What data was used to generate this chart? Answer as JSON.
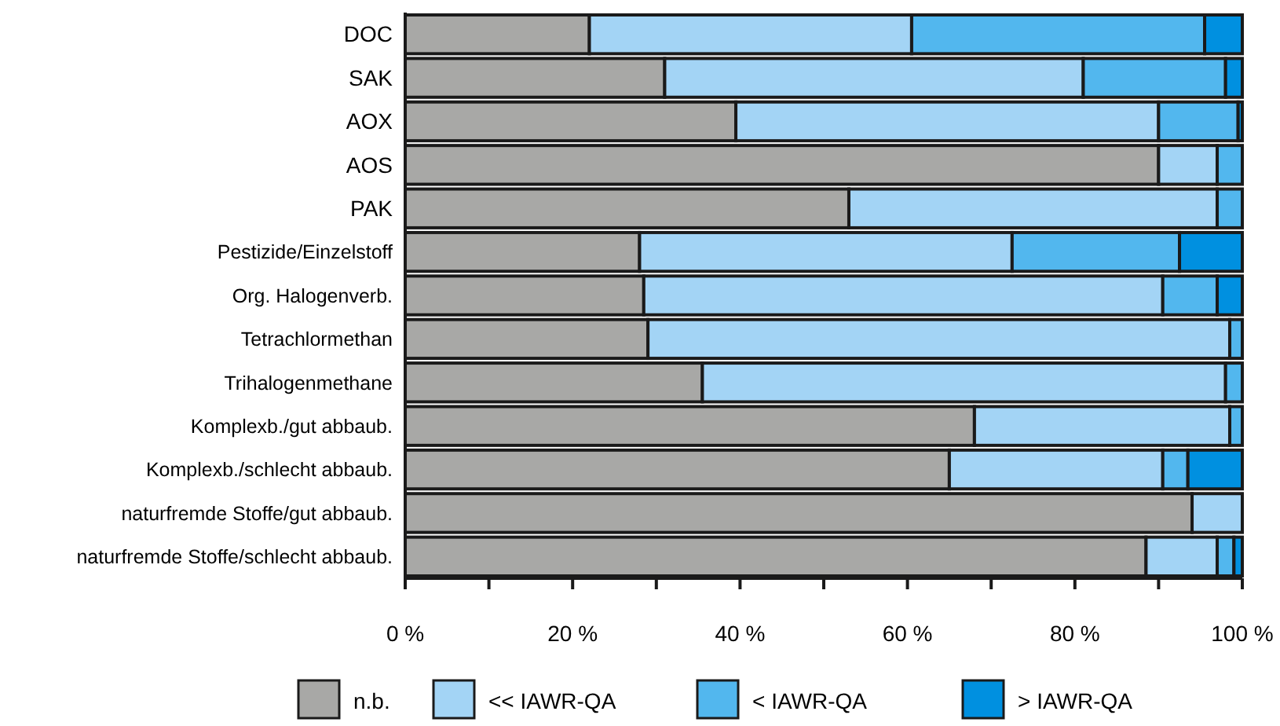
{
  "chart_data": {
    "type": "bar",
    "orientation": "horizontal",
    "stacked": true,
    "categories": [
      "DOC",
      "SAK",
      "AOX",
      "AOS",
      "PAK",
      "Pestizide/Einzelstoff",
      "Org. Halogenverb.",
      "Tetrachlormethan",
      "Trihalogenmethane",
      "Komplexb./gut abbaub.",
      "Komplexb./schlecht abbaub.",
      "naturfremde Stoffe/gut abbaub.",
      "naturfremde Stoffe/schlecht abbaub."
    ],
    "series": [
      {
        "name": "n.b.",
        "color": "#a8a8a6",
        "values": [
          22,
          31,
          39.5,
          90,
          53,
          28,
          28.5,
          29,
          35.5,
          68,
          65,
          94,
          88.5
        ]
      },
      {
        "name": "<< IAWR-QA",
        "color": "#a3d4f5",
        "values": [
          38.5,
          50,
          50.5,
          7,
          44,
          44.5,
          62,
          69.5,
          62.5,
          30.5,
          25.5,
          6,
          8.5
        ]
      },
      {
        "name": "< IAWR-QA",
        "color": "#52b7ee",
        "values": [
          35,
          17,
          9.5,
          3,
          3,
          20,
          6.5,
          1.5,
          2,
          1.5,
          3,
          0,
          2
        ]
      },
      {
        "name": "> IAWR-QA",
        "color": "#0090e0",
        "values": [
          4.5,
          2,
          0.5,
          0,
          0,
          7.5,
          3,
          0,
          0,
          0,
          6.5,
          0,
          1
        ]
      }
    ],
    "xlim": [
      0,
      100
    ],
    "xticks": [
      {
        "value": 0,
        "label": "0 %"
      },
      {
        "value": 10,
        "label": null
      },
      {
        "value": 20,
        "label": "20 %"
      },
      {
        "value": 30,
        "label": null
      },
      {
        "value": 40,
        "label": "40 %"
      },
      {
        "value": 50,
        "label": null
      },
      {
        "value": 60,
        "label": "60 %"
      },
      {
        "value": 70,
        "label": null
      },
      {
        "value": 80,
        "label": "80 %"
      },
      {
        "value": 90,
        "label": null
      },
      {
        "value": 100,
        "label": "100 %"
      }
    ],
    "legend": "bottom",
    "grid": false
  }
}
